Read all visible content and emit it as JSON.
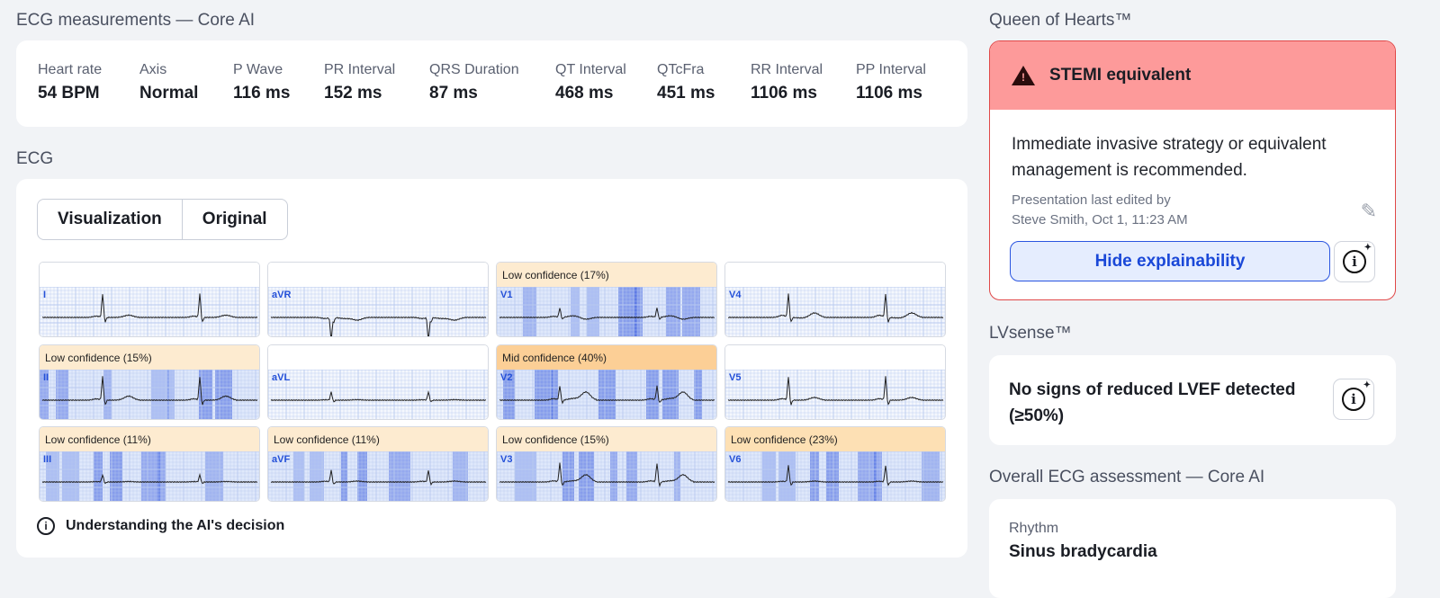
{
  "measurements": {
    "title": "ECG measurements — Core AI",
    "items": [
      {
        "label": "Heart rate",
        "value": "54 BPM"
      },
      {
        "label": "Axis",
        "value": "Normal"
      },
      {
        "label": "P Wave",
        "value": "116 ms"
      },
      {
        "label": "PR Interval",
        "value": "152 ms"
      },
      {
        "label": "QRS Duration",
        "value": "87 ms"
      },
      {
        "label": "QT Interval",
        "value": "468 ms"
      },
      {
        "label": "QTcFra",
        "value": "451 ms"
      },
      {
        "label": "RR Interval",
        "value": "1106 ms"
      },
      {
        "label": "PP Interval",
        "value": "1106 ms"
      }
    ]
  },
  "ecg": {
    "title": "ECG",
    "tabs": [
      "Visualization",
      "Original"
    ],
    "active_tab": "Visualization",
    "leads": [
      {
        "name": "I",
        "confidence": ""
      },
      {
        "name": "aVR",
        "confidence": ""
      },
      {
        "name": "V1",
        "confidence": "Low confidence (17%)",
        "level": "low"
      },
      {
        "name": "V4",
        "confidence": ""
      },
      {
        "name": "II",
        "confidence": "Low confidence (15%)",
        "level": "low"
      },
      {
        "name": "aVL",
        "confidence": ""
      },
      {
        "name": "V2",
        "confidence": "Mid confidence (40%)",
        "level": "mid"
      },
      {
        "name": "V5",
        "confidence": ""
      },
      {
        "name": "III",
        "confidence": "Low confidence (11%)",
        "level": "low"
      },
      {
        "name": "aVF",
        "confidence": "Low confidence (11%)",
        "level": "low"
      },
      {
        "name": "V3",
        "confidence": "Low confidence (15%)",
        "level": "low"
      },
      {
        "name": "V6",
        "confidence": "Low confidence (23%)",
        "level": "low"
      }
    ],
    "help_label": "Understanding the AI's decision"
  },
  "queen": {
    "title": "Queen of Hearts™",
    "alert": "STEMI equivalent",
    "recommendation": "Immediate invasive strategy or equivalent management is recommended.",
    "edited_line1": "Presentation last edited by",
    "edited_line2": "Steve Smith, Oct 1, 11:23 AM",
    "hide_button": "Hide explainability",
    "alert_color": "#fd9a9a"
  },
  "lvsense": {
    "title": "LVsense™",
    "result": "No signs of reduced LVEF detected (≥50%)"
  },
  "overall": {
    "title": "Overall ECG assessment — Core AI",
    "label": "Rhythm",
    "value": "Sinus bradycardia"
  }
}
